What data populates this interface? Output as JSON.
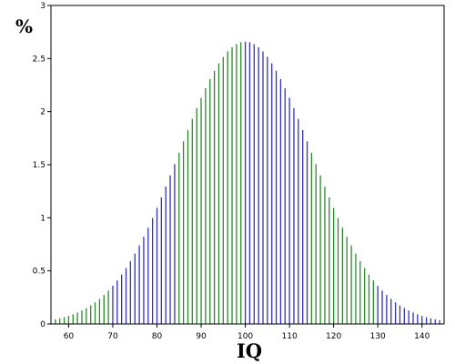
{
  "chart_data": {
    "type": "bar",
    "title": "",
    "xlabel": "IQ",
    "ylabel": "%",
    "xlim": [
      56,
      145
    ],
    "ylim": [
      0,
      3
    ],
    "x_ticks": [
      60,
      70,
      80,
      90,
      100,
      110,
      120,
      130,
      140
    ],
    "y_ticks": [
      0,
      0.5,
      1,
      1.5,
      2,
      2.5,
      3
    ],
    "y_tick_labels": [
      "0",
      "0.5",
      "1",
      "1.5",
      "2",
      "2.5",
      "3"
    ],
    "x_range": [
      57,
      144
    ],
    "mean": 100,
    "sd": 15,
    "grid": false,
    "legend": "none",
    "colors": {
      "outer_band": "#3030c8",
      "inner_band": "#2a8a2a",
      "axis": "#000000"
    },
    "bands": [
      {
        "from": 57,
        "to": 69,
        "color": "#2a8a2a"
      },
      {
        "from": 70,
        "to": 84,
        "color": "#3030c8"
      },
      {
        "from": 85,
        "to": 99,
        "color": "#2a8a2a"
      },
      {
        "from": 100,
        "to": 114,
        "color": "#3030c8"
      },
      {
        "from": 115,
        "to": 129,
        "color": "#2a8a2a"
      },
      {
        "from": 130,
        "to": 144,
        "color": "#3030c8"
      }
    ]
  }
}
